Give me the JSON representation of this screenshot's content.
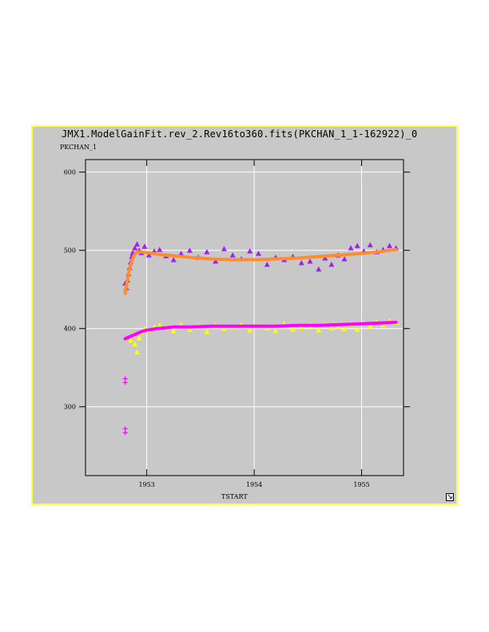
{
  "window": {
    "title": "JMX1.ModelGainFit.rev_2.Rev16to360.fits(PKCHAN_1_1-162922)_0",
    "resize_icon": "resize-arrow-icon"
  },
  "colors": {
    "background": "#c8c8c8",
    "frame": "#ffff44",
    "grid": "#ffffff",
    "purple": "#a020f0",
    "yellow": "#ffff00",
    "orange": "#ff8c30",
    "magenta": "#ff00ff"
  },
  "chart_data": {
    "type": "scatter",
    "title": "JMX1.ModelGainFit.rev_2.Rev16to360.fits(PKCHAN_1_1-162922)_0",
    "xlabel": "TSTART",
    "ylabel": "PKCHAN_1",
    "xlim": [
      1952.43,
      1955.39
    ],
    "ylim": [
      212,
      616
    ],
    "xticks": [
      "1953",
      "1954",
      "1955"
    ],
    "xtick_values": [
      1953,
      1954,
      1955
    ],
    "yticks": [
      "300",
      "400",
      "500",
      "600"
    ],
    "ytick_values": [
      300,
      400,
      500,
      600
    ],
    "grid": true,
    "series": [
      {
        "marker": "triangle",
        "color": "#a020f0",
        "x": [
          1952.8,
          1952.81,
          1952.82,
          1952.83,
          1952.84,
          1952.85,
          1952.86,
          1952.87,
          1952.89,
          1952.91,
          1952.93,
          1952.95,
          1952.98,
          1953.02,
          1953.07,
          1953.12,
          1953.18,
          1953.25,
          1953.32,
          1953.4,
          1953.48,
          1953.56,
          1953.64,
          1953.72,
          1953.8,
          1953.88,
          1953.96,
          1954.04,
          1954.12,
          1954.2,
          1954.28,
          1954.36,
          1954.44,
          1954.52,
          1954.6,
          1954.66,
          1954.72,
          1954.78,
          1954.84,
          1954.9,
          1954.96,
          1955.02,
          1955.08,
          1955.14,
          1955.2,
          1955.26,
          1955.32
        ],
        "y": [
          458,
          452,
          462,
          470,
          478,
          485,
          492,
          497,
          503,
          508,
          500,
          497,
          505,
          494,
          499,
          501,
          493,
          488,
          496,
          500,
          491,
          498,
          486,
          502,
          494,
          489,
          499,
          496,
          482,
          491,
          488,
          492,
          484,
          486,
          476,
          490,
          482,
          494,
          489,
          503,
          506,
          499,
          507,
          498,
          501,
          506,
          503
        ]
      },
      {
        "marker": "triangle",
        "color": "#ffff00",
        "x": [
          1952.85,
          1952.87,
          1952.89,
          1952.91,
          1952.93,
          1952.95,
          1952.98,
          1953.02,
          1953.07,
          1953.12,
          1953.18,
          1953.25,
          1953.32,
          1953.4,
          1953.48,
          1953.56,
          1953.64,
          1953.72,
          1953.8,
          1953.88,
          1953.96,
          1954.04,
          1954.12,
          1954.2,
          1954.28,
          1954.36,
          1954.44,
          1954.52,
          1954.6,
          1954.66,
          1954.72,
          1954.78,
          1954.84,
          1954.9,
          1954.96,
          1955.02,
          1955.08,
          1955.14,
          1955.2,
          1955.26,
          1955.32
        ],
        "y": [
          385,
          392,
          380,
          370,
          388,
          395,
          400,
          398,
          402,
          404,
          401,
          397,
          405,
          399,
          403,
          396,
          404,
          400,
          402,
          405,
          398,
          403,
          401,
          397,
          406,
          399,
          402,
          404,
          398,
          405,
          401,
          403,
          400,
          406,
          399,
          407,
          404,
          408,
          405,
          410,
          408
        ]
      },
      {
        "marker": "plus",
        "color": "#ff00ff",
        "x": [
          1952.8,
          1952.8,
          1952.8,
          1952.8
        ],
        "y": [
          336,
          331,
          272,
          267
        ]
      },
      {
        "marker": "line",
        "color": "#ff8c30",
        "x": [
          1952.8,
          1952.82,
          1952.84,
          1952.86,
          1952.88,
          1952.9,
          1952.92,
          1952.95,
          1953.0,
          1953.1,
          1953.25,
          1953.4,
          1953.6,
          1953.8,
          1954.0,
          1954.2,
          1954.4,
          1954.6,
          1954.8,
          1955.0,
          1955.15,
          1955.32
        ],
        "y": [
          445,
          462,
          476,
          486,
          493,
          497,
          498,
          498,
          497,
          495,
          493,
          491,
          489,
          488,
          488,
          489,
          490,
          492,
          494,
          496,
          498,
          501
        ]
      },
      {
        "marker": "line",
        "color": "#ff00ff",
        "x": [
          1952.8,
          1952.85,
          1952.9,
          1952.95,
          1953.0,
          1953.1,
          1953.25,
          1953.4,
          1953.6,
          1953.8,
          1954.0,
          1954.2,
          1954.4,
          1954.6,
          1954.8,
          1955.0,
          1955.15,
          1955.32
        ],
        "y": [
          387,
          390,
          393,
          396,
          398,
          400,
          402,
          402,
          403,
          403,
          403,
          403,
          404,
          404,
          405,
          406,
          407,
          408
        ]
      }
    ]
  }
}
